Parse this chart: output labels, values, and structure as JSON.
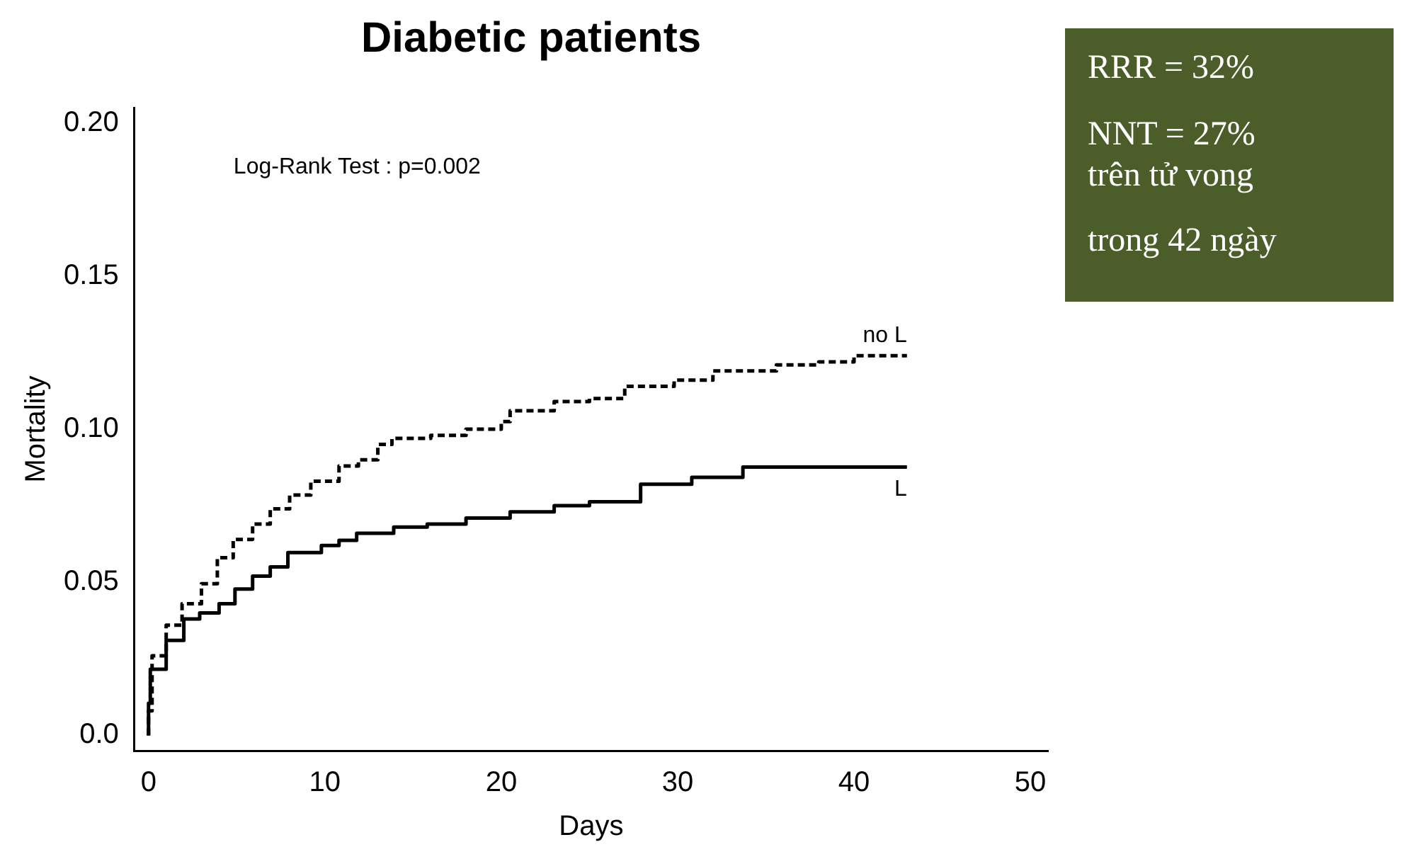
{
  "chart_data": {
    "type": "step",
    "title": "Diabetic patients",
    "xlabel": "Days",
    "ylabel": "Mortality",
    "annotations": [
      "Log-Rank Test : p=0.002",
      "RRR = 32%",
      "NNT = 27%\ntrên tử vong",
      "trong 42 ngày"
    ],
    "xlim": [
      -0.8,
      51
    ],
    "xticks": [
      0,
      10,
      20,
      30,
      40,
      50
    ],
    "ylim": [
      -0.005,
      0.205
    ],
    "yticks": [
      {
        "value": 0,
        "label": "0.0"
      },
      0.05,
      {
        "value": 0.1,
        "label": "0.10"
      },
      0.15,
      {
        "value": 0.2,
        "label": "0.20"
      }
    ],
    "grid": false,
    "legend": false,
    "marker": "none",
    "series": [
      {
        "name": "no L",
        "color": "#000000",
        "line_style": "dashed",
        "x": [
          0,
          0.2,
          1,
          1.9,
          3,
          3.9,
          4.8,
          5.9,
          6.9,
          8,
          9.2,
          10.8,
          11.9,
          13,
          13.8,
          16,
          18,
          20,
          20.5,
          23,
          25,
          27,
          29.8,
          32,
          35.6,
          38,
          40,
          43
        ],
        "values": [
          0,
          0.008,
          0.026,
          0.036,
          0.043,
          0.0495,
          0.058,
          0.064,
          0.069,
          0.074,
          0.0785,
          0.083,
          0.088,
          0.09,
          0.095,
          0.097,
          0.098,
          0.1,
          0.1025,
          0.106,
          0.109,
          0.11,
          0.114,
          0.116,
          0.119,
          0.121,
          0.122,
          0.124
        ]
      },
      {
        "name": "L",
        "color": "#000000",
        "line_style": "solid",
        "x": [
          0,
          0.1,
          1,
          2,
          2.9,
          4,
          4.9,
          5.9,
          6.9,
          7.9,
          9.8,
          10.8,
          11.8,
          13.9,
          15.8,
          18,
          20.5,
          23,
          25,
          27.9,
          30.8,
          33.7,
          40.9,
          43
        ],
        "values": [
          0,
          0.0105,
          0.0216,
          0.031,
          0.038,
          0.04,
          0.043,
          0.0478,
          0.052,
          0.055,
          0.0597,
          0.062,
          0.0637,
          0.066,
          0.068,
          0.069,
          0.071,
          0.073,
          0.075,
          0.0763,
          0.082,
          0.0843,
          0.0876,
          0.0876
        ]
      }
    ]
  }
}
